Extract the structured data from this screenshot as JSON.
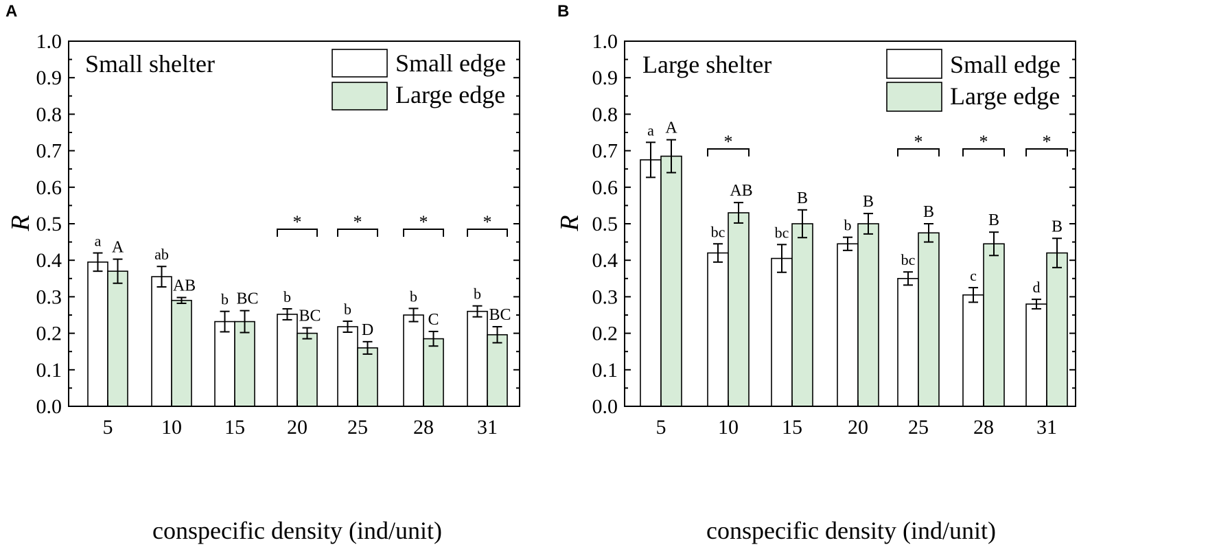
{
  "figure": {
    "panels": [
      "A",
      "B"
    ],
    "legend_box_colors": {
      "small_edge": "#ffffff",
      "large_edge": "#d7ecd8"
    }
  },
  "chart_data": [
    {
      "type": "bar",
      "panel_label": "A",
      "title": "Small shelter",
      "xlabel": "conspecific density (ind/unit)",
      "ylabel": "R",
      "ylim": [
        0.0,
        1.0
      ],
      "yticks": [
        "0.0",
        "0.1",
        "0.2",
        "0.3",
        "0.4",
        "0.5",
        "0.6",
        "0.7",
        "0.8",
        "0.9",
        "1.0"
      ],
      "categories": [
        "5",
        "10",
        "15",
        "20",
        "25",
        "28",
        "31"
      ],
      "legend": [
        "Small edge",
        "Large edge"
      ],
      "legend_position": "top-right",
      "series": [
        {
          "name": "Small edge",
          "color": "#ffffff",
          "values": [
            0.395,
            0.355,
            0.232,
            0.252,
            0.218,
            0.25,
            0.26
          ],
          "errors": [
            0.025,
            0.028,
            0.028,
            0.015,
            0.015,
            0.018,
            0.015
          ],
          "letters": [
            "a",
            "ab",
            "b",
            "b",
            "b",
            "b",
            "b"
          ]
        },
        {
          "name": "Large edge",
          "color": "#d7ecd8",
          "values": [
            0.37,
            0.29,
            0.232,
            0.2,
            0.16,
            0.185,
            0.196
          ],
          "errors": [
            0.033,
            0.008,
            0.03,
            0.015,
            0.017,
            0.02,
            0.022
          ],
          "letters": [
            "A",
            "AB",
            "BC",
            "BC",
            "D",
            "C",
            "BC"
          ]
        }
      ],
      "significance": {
        "categories": [
          "20",
          "25",
          "28",
          "31"
        ],
        "symbol": "*",
        "level": 0.485
      }
    },
    {
      "type": "bar",
      "panel_label": "B",
      "title": "Large shelter",
      "xlabel": "conspecific density (ind/unit)",
      "ylabel": "R",
      "ylim": [
        0.0,
        1.0
      ],
      "yticks": [
        "0.0",
        "0.1",
        "0.2",
        "0.3",
        "0.4",
        "0.5",
        "0.6",
        "0.7",
        "0.8",
        "0.9",
        "1.0"
      ],
      "categories": [
        "5",
        "10",
        "15",
        "20",
        "25",
        "28",
        "31"
      ],
      "legend": [
        "Small edge",
        "Large edge"
      ],
      "legend_position": "top-right",
      "series": [
        {
          "name": "Small edge",
          "color": "#ffffff",
          "values": [
            0.675,
            0.42,
            0.405,
            0.445,
            0.35,
            0.305,
            0.28
          ],
          "errors": [
            0.048,
            0.025,
            0.038,
            0.018,
            0.018,
            0.02,
            0.013
          ],
          "letters": [
            "a",
            "bc",
            "bc",
            "b",
            "bc",
            "c",
            "d"
          ]
        },
        {
          "name": "Large edge",
          "color": "#d7ecd8",
          "values": [
            0.685,
            0.53,
            0.5,
            0.5,
            0.475,
            0.445,
            0.42
          ],
          "errors": [
            0.045,
            0.028,
            0.038,
            0.028,
            0.025,
            0.032,
            0.04
          ],
          "letters": [
            "A",
            "AB",
            "B",
            "B",
            "B",
            "B",
            "B"
          ]
        }
      ],
      "significance": {
        "categories": [
          "10",
          "25",
          "28",
          "31"
        ],
        "symbol": "*",
        "levels": {
          "10": 0.705,
          "25": 0.705,
          "28": 0.705,
          "31": 0.705
        }
      }
    }
  ]
}
